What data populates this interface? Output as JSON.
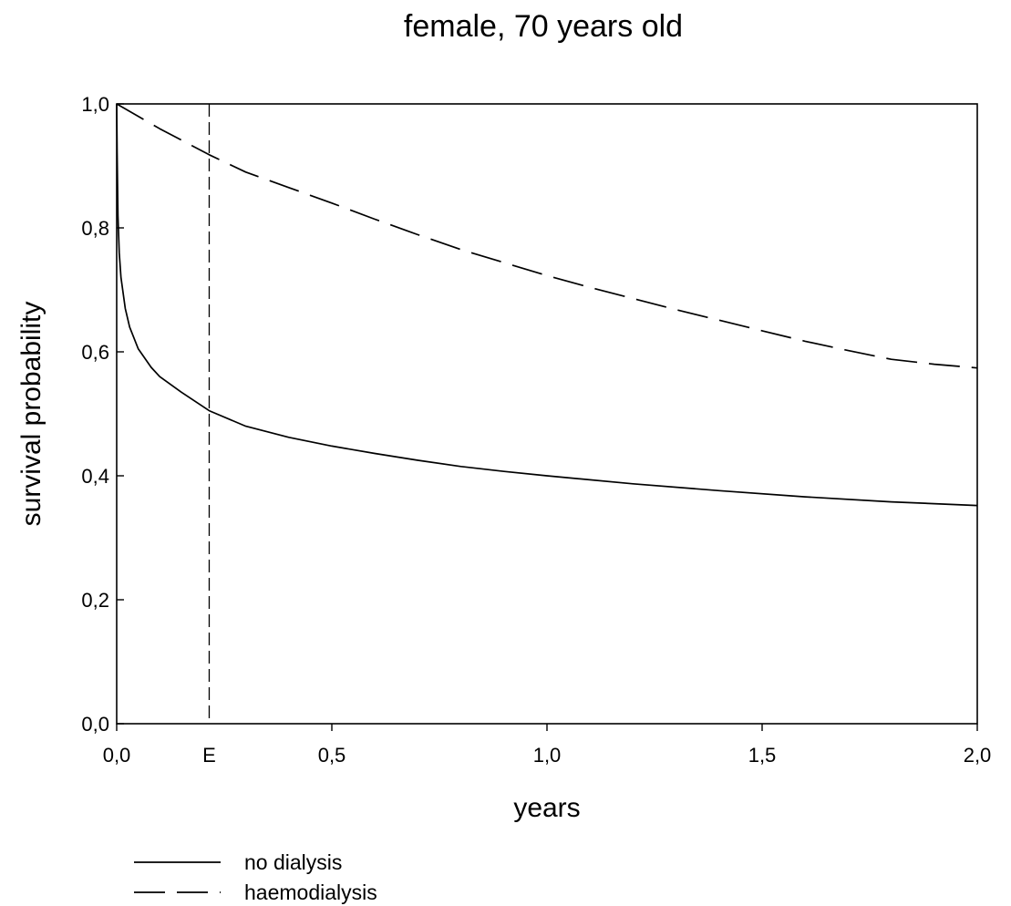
{
  "chart_data": {
    "type": "line",
    "title": "female, 70 years old",
    "xlabel": "years",
    "ylabel": "survival probability",
    "xlim": [
      0.0,
      2.0
    ],
    "ylim": [
      0.0,
      1.0
    ],
    "xticks": [
      {
        "value": 0.0,
        "label": "0,0"
      },
      {
        "value": 0.5,
        "label": "0,5"
      },
      {
        "value": 1.0,
        "label": "1,0"
      },
      {
        "value": 1.5,
        "label": "1,5"
      },
      {
        "value": 2.0,
        "label": "2,0"
      }
    ],
    "yticks": [
      {
        "value": 0.0,
        "label": "0,0"
      },
      {
        "value": 0.2,
        "label": "0,2"
      },
      {
        "value": 0.4,
        "label": "0,4"
      },
      {
        "value": 0.6,
        "label": "0,6"
      },
      {
        "value": 0.8,
        "label": "0,8"
      },
      {
        "value": 1.0,
        "label": "1,0"
      }
    ],
    "grid": false,
    "legend_placement": "bottom-left",
    "series": [
      {
        "name": "no dialysis",
        "line_style": "solid",
        "x": [
          0.0,
          0.001,
          0.003,
          0.006,
          0.01,
          0.02,
          0.03,
          0.05,
          0.08,
          0.1,
          0.15,
          0.215,
          0.3,
          0.4,
          0.5,
          0.6,
          0.7,
          0.8,
          0.9,
          1.0,
          1.2,
          1.4,
          1.6,
          1.8,
          2.0
        ],
        "y": [
          1.0,
          0.92,
          0.82,
          0.76,
          0.72,
          0.67,
          0.64,
          0.605,
          0.575,
          0.56,
          0.535,
          0.505,
          0.48,
          0.462,
          0.448,
          0.436,
          0.425,
          0.415,
          0.407,
          0.4,
          0.387,
          0.376,
          0.366,
          0.358,
          0.352
        ]
      },
      {
        "name": "haemodialysis",
        "line_style": "dashed",
        "x": [
          0.0,
          0.1,
          0.215,
          0.3,
          0.4,
          0.5,
          0.6,
          0.7,
          0.8,
          0.9,
          1.0,
          1.1,
          1.2,
          1.3,
          1.4,
          1.5,
          1.6,
          1.7,
          1.8,
          1.9,
          2.0
        ],
        "y": [
          1.0,
          0.96,
          0.918,
          0.89,
          0.865,
          0.84,
          0.814,
          0.789,
          0.765,
          0.744,
          0.723,
          0.704,
          0.686,
          0.668,
          0.651,
          0.634,
          0.617,
          0.602,
          0.588,
          0.58,
          0.574
        ]
      }
    ],
    "annotations": [
      {
        "type": "vertical_line",
        "x": 0.215,
        "label": "E",
        "line_style": "dashed"
      }
    ]
  }
}
